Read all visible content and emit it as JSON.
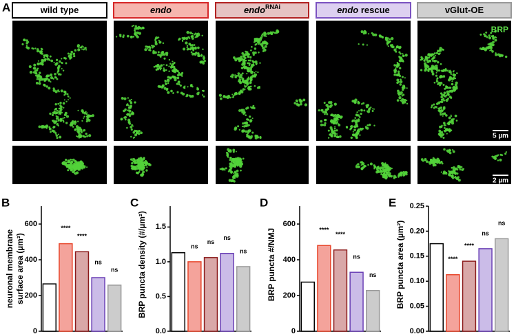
{
  "panels": {
    "letter": "A",
    "headers": [
      {
        "text": "wild type",
        "border": "#000000",
        "fill": "#ffffff"
      },
      {
        "text": "endo",
        "border": "#d62728",
        "fill": "#f6b5ae"
      },
      {
        "text": "endo",
        "sup": "RNAi",
        "border": "#b22222",
        "fill": "#e6c3c3"
      },
      {
        "text": "endo rescue",
        "border": "#7b52c1",
        "fill": "#ddd0f0"
      },
      {
        "text": "vGlut-OE",
        "border": "#999999",
        "fill": "#d0d0d0"
      }
    ],
    "stain": "BRP",
    "scale_main": "5 µm",
    "scale_zoom": "2 µm"
  },
  "chart_data": [
    {
      "type": "bar",
      "letter": "B",
      "ylabel": [
        "neuronal membrane",
        "surface area (µm²)"
      ],
      "categories": [
        "wild type",
        "endo",
        "endoRNAi",
        "endo rescue",
        "vGlut-OE"
      ],
      "values": [
        265,
        490,
        445,
        300,
        258
      ],
      "annotations": [
        null,
        "****",
        "****",
        "ns",
        "ns"
      ],
      "ylim": [
        0,
        700
      ],
      "yticks": [
        0,
        200,
        400,
        600
      ]
    },
    {
      "type": "bar",
      "letter": "C",
      "ylabel": "BRP puncta density (#/µm²)",
      "categories": [
        "wild type",
        "endo",
        "endoRNAi",
        "endo rescue",
        "vGlut-OE"
      ],
      "values": [
        1.13,
        1.0,
        1.06,
        1.12,
        0.93
      ],
      "annotations": [
        null,
        "ns",
        "ns",
        "ns",
        "ns"
      ],
      "ylim": [
        0,
        1.8
      ],
      "yticks": [
        {
          "value": 0,
          "label": "0.0"
        },
        0.5,
        {
          "value": 1,
          "label": "1.0"
        },
        1.5
      ]
    },
    {
      "type": "bar",
      "letter": "D",
      "ylabel": "BRP puncta #/NMJ",
      "categories": [
        "wild type",
        "endo",
        "endoRNAi",
        "endo rescue",
        "vGlut-OE"
      ],
      "values": [
        275,
        480,
        455,
        330,
        228
      ],
      "annotations": [
        null,
        "****",
        "****",
        "ns",
        "ns"
      ],
      "ylim": [
        0,
        700
      ],
      "yticks": [
        0,
        200,
        400,
        600
      ]
    },
    {
      "type": "bar",
      "letter": "E",
      "ylabel": "BRP puncta area (µm²)",
      "categories": [
        "wild type",
        "endo",
        "endoRNAi",
        "endo rescue",
        "vGlut-OE"
      ],
      "values": [
        0.175,
        0.113,
        0.14,
        0.165,
        0.185
      ],
      "annotations": [
        null,
        "****",
        "****",
        "ns",
        "ns"
      ],
      "ylim": [
        0,
        0.25
      ],
      "yticks": [
        {
          "value": 0,
          "label": "0.00"
        },
        0.05,
        {
          "value": 0.1,
          "label": "0.10"
        },
        0.15,
        {
          "value": 0.2,
          "label": "0.20"
        },
        0.25
      ]
    }
  ],
  "bar_colors": [
    "#ffffff",
    "#f4a39b",
    "#d9a8a8",
    "#cbbce8",
    "#cccccc"
  ],
  "edge_colors": [
    "#000000",
    "#e8452a",
    "#8b1a1a",
    "#6a3fb5",
    "#9a9a9a"
  ]
}
